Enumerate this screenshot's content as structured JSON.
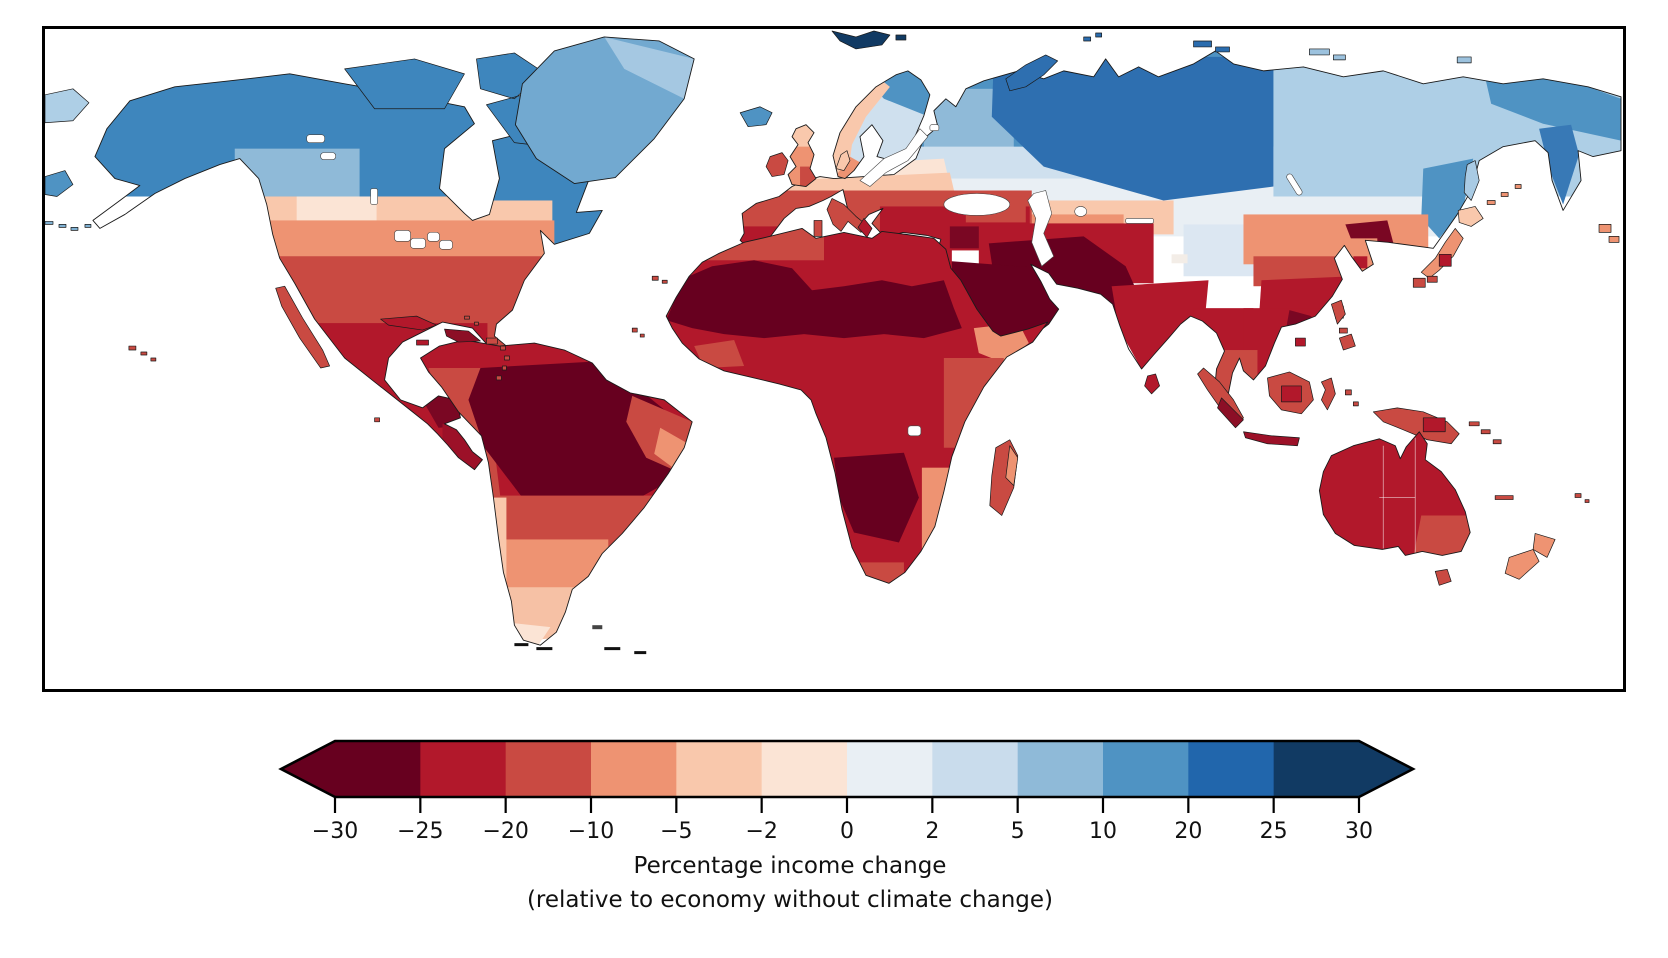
{
  "figure": {
    "caption_line1": "Percentage income change",
    "caption_line2": "(relative to economy without climate change)"
  },
  "colorbar": {
    "tick_labels": [
      "−30",
      "−25",
      "−20",
      "−10",
      "−5",
      "−2",
      "0",
      "2",
      "5",
      "10",
      "20",
      "25",
      "30"
    ],
    "boundaries": [
      -30,
      -25,
      -20,
      -10,
      -5,
      -2,
      0,
      2,
      5,
      10,
      20,
      25,
      30
    ],
    "segment_colors": [
      "#67001f",
      "#b2182b",
      "#c94a42",
      "#ee9372",
      "#f9c8ac",
      "#fbe4d5",
      "#e9eff4",
      "#c9dcec",
      "#8fbad8",
      "#4f93c3",
      "#2166ac",
      "#113a63"
    ],
    "under_arrow_color": "#67001f",
    "over_arrow_color": "#113a63",
    "outline_color": "#000000",
    "extend": "both"
  },
  "map": {
    "ocean_color": "#ffffff",
    "frame_color": "#000000",
    "region_colors": {
      "water": "#ffffff",
      "canada": "#3e86bd",
      "bc_patch": "#8fbad8",
      "ontario_patch": "#c9dcec",
      "arctic_islands": "#3e86bd",
      "greenland_main": "#72a9d0",
      "greenland_ne": "#a5c8e2",
      "us_pale": "#f9c8ac",
      "us_plains_pale": "#fbe4d5",
      "us_ne_peach": "#f9c8ac",
      "us_salmon": "#ee9372",
      "us_brick": "#c94a42",
      "mexico": "#b2182b",
      "yucatan_dark": "#7a0723",
      "centam_dark": "#9c1128",
      "baja": "#c94a42",
      "cuba": "#b2182b",
      "hispaniola": "#8c0f26",
      "jamaica": "#b2182b",
      "puerto_rico": "#c94a42",
      "antilles": "#c94a42",
      "bahamas": "#c94a42",
      "hawaii": "#c94a42",
      "galapagos": "#c94a42",
      "canary": "#c94a42",
      "cape_verde": "#c94a42",
      "sa_base": "#b2182b",
      "andes_coast": "#c94a42",
      "amazon": "#67001f",
      "ne_brazil": "#c94a42",
      "ne_brazil_salmon": "#ee9372",
      "south_band": "#c94a42",
      "argentina": "#ee9372",
      "chile_strip": "#f9c8ac",
      "patagonia": "#f6c1a5",
      "patagonia_tip": "#fbe4d5",
      "tierra_specks": "#111111",
      "falkland": "#444444",
      "iceland": "#4f93c3",
      "ireland": "#c94a42",
      "uk_main": "#ee9372",
      "uk_scotland": "#f9c8ac",
      "uk_brick": "#c94a42",
      "denmark": "#f9c8ac",
      "scandinavia_base": "#cfe0ee",
      "scandinavia_north": "#4f93c3",
      "norway_coast": "#f9c8ac",
      "scandinavia_south": "#ee9372",
      "svalbard": "#113a63",
      "novaya_zemlya": "#2e6fb0",
      "arctic_specks": "#2a6cae",
      "new_siberian": "#9cc2de",
      "wrangel": "#9cc2de",
      "arctic_band": "#4f93c3",
      "nw_russia": "#8fbad8",
      "russia_pale": "#cfe0ee",
      "russia_vpale": "#e9eff4",
      "siberia_dark": "#2e6fb0",
      "esiberia_light": "#aecfe6",
      "chukotka_med": "#4f93c3",
      "kamchatka": "#3879b6",
      "fareast_med": "#4f93c3",
      "sakhalin": "#a9cbe4",
      "steppe_peach": "#f9c8ac",
      "steppe_salmon": "#ee9372",
      "europe_pale_band": "#fbe4d5",
      "europe_peach_band": "#f9c8ac",
      "europe_brick": "#c94a42",
      "iberia_south": "#b2182b",
      "se_europe": "#b2182b",
      "turkey_maroon": "#7a0723",
      "caucasus": "#c94a42",
      "levant": "#b2182b",
      "central_asia": "#b2182b",
      "iran_pak": "#67001f",
      "arabia": "#67001f",
      "india": "#b2182b",
      "burma": "#b2182b",
      "tibet": "#dce7f2",
      "karakoram": "#f3ede7",
      "china_salmon": "#ee9372",
      "china_brick": "#c94a42",
      "china_crimson": "#b2182b",
      "ne_china": "#7a0723",
      "korea": "#ee9372",
      "korea_dot": "#b2182b",
      "japan_hokkaido": "#f9c8ac",
      "japan_honshu": "#ee9372",
      "japan_patch": "#b2182b",
      "japan_south": "#c94a42",
      "kurils": "#ee9372",
      "taiwan": "#c94a42",
      "hainan": "#b2182b",
      "indochina": "#b2182b",
      "vietnam_laos": "#7a0723",
      "malay": "#c94a42",
      "sri_lanka": "#b2182b",
      "sumatra": "#c94a42",
      "sumatra_dark": "#8c0f26",
      "java": "#9c1128",
      "borneo": "#c94a42",
      "borneo_dark": "#b2182b",
      "sulawesi": "#c94a42",
      "philippines": "#c94a42",
      "moluccas": "#c94a42",
      "new_guinea": "#c94a42",
      "ng_patch": "#b2182b",
      "melanesia": "#c94a42",
      "africa_base": "#b2182b",
      "maghreb_coast": "#c94a42",
      "sahara": "#67001f",
      "west_africa_brick": "#c94a42",
      "ethiopia": "#ee9372",
      "east_africa": "#c94a42",
      "sw_africa_dark": "#67001f",
      "mozambique": "#ee9372",
      "cape_brick": "#c94a42",
      "madagascar": "#c94a42",
      "madagascar_e": "#ee9372",
      "australia": "#b2182b",
      "nsw": "#c94a42",
      "tasmania": "#c94a42",
      "nz": "#ee9372",
      "new_caledonia": "#c94a42",
      "fiji": "#c94a42",
      "bering_frag_light": "#aecfe6",
      "bering_frag_med": "#4f93c3",
      "aleutians": "#7fb0d2",
      "right_edge_specks": "#ee9372",
      "antarctic_specks": "#111111"
    }
  },
  "chart_data": {
    "type": "heatmap",
    "subtype": "world-choropleth",
    "title": "",
    "colorbar_label": "Percentage income change (relative to economy without climate change)",
    "colorbar_ticks": [
      -30,
      -25,
      -20,
      -10,
      -5,
      -2,
      0,
      2,
      5,
      10,
      20,
      25,
      30
    ],
    "colorbar_extend": "both",
    "palette": "RdBu diverging (red = income loss, blue = income gain)",
    "legend_position": "bottom",
    "grid": false,
    "regions": [
      {
        "region": "Arctic Canada",
        "value": 18
      },
      {
        "region": "Canada (main)",
        "value": 15
      },
      {
        "region": "Alaska",
        "value": 13
      },
      {
        "region": "British Columbia / Alberta",
        "value": 7
      },
      {
        "region": "Southern Ontario",
        "value": 3
      },
      {
        "region": "Greenland",
        "value": 8
      },
      {
        "region": "Northern US (Pacific NW, N Plains, New England)",
        "value": -3
      },
      {
        "region": "Central US",
        "value": -8
      },
      {
        "region": "Southern US",
        "value": -15
      },
      {
        "region": "Mexico",
        "value": -22
      },
      {
        "region": "Central America",
        "value": -26
      },
      {
        "region": "Caribbean",
        "value": -24
      },
      {
        "region": "Amazon basin",
        "value": -32
      },
      {
        "region": "Andean South America",
        "value": -15
      },
      {
        "region": "NE Brazil",
        "value": -18
      },
      {
        "region": "SE Brazil",
        "value": -22
      },
      {
        "region": "Argentina (pampas)",
        "value": -10
      },
      {
        "region": "Chile",
        "value": -5
      },
      {
        "region": "Patagonia",
        "value": -2
      },
      {
        "region": "Iceland",
        "value": 12
      },
      {
        "region": "UK & Ireland",
        "value": -7
      },
      {
        "region": "Southern Scandinavia",
        "value": -6
      },
      {
        "region": "Northern Scandinavia / Finland",
        "value": 5
      },
      {
        "region": "Central Europe",
        "value": -8
      },
      {
        "region": "Southern Europe",
        "value": -18
      },
      {
        "region": "NW Russia",
        "value": 8
      },
      {
        "region": "Central Siberia",
        "value": 22
      },
      {
        "region": "Eastern Siberia",
        "value": 5
      },
      {
        "region": "Southern Russia / Kazakh steppe",
        "value": -6
      },
      {
        "region": "Turkey",
        "value": -20
      },
      {
        "region": "Middle East / Arabia",
        "value": -32
      },
      {
        "region": "North Africa / Sahara",
        "value": -32
      },
      {
        "region": "Sahel & West Africa",
        "value": -22
      },
      {
        "region": "Central Africa",
        "value": -20
      },
      {
        "region": "East Africa / Ethiopia",
        "value": -11
      },
      {
        "region": "Southern Africa (Angola–Botswana)",
        "value": -28
      },
      {
        "region": "South Africa",
        "value": -20
      },
      {
        "region": "Madagascar",
        "value": -15
      },
      {
        "region": "Iran / Pakistan",
        "value": -29
      },
      {
        "region": "India",
        "value": -22
      },
      {
        "region": "Tibetan Plateau",
        "value": 1
      },
      {
        "region": "Southern / Eastern China",
        "value": -20
      },
      {
        "region": "NE China",
        "value": -28
      },
      {
        "region": "Mongolia",
        "value": -2
      },
      {
        "region": "Korea",
        "value": -14
      },
      {
        "region": "Japan",
        "value": -10
      },
      {
        "region": "Indochina (Vietnam/Laos)",
        "value": -27
      },
      {
        "region": "Indonesia / Malaysia",
        "value": -18
      },
      {
        "region": "Philippines",
        "value": -15
      },
      {
        "region": "New Guinea",
        "value": -15
      },
      {
        "region": "Australia",
        "value": -22
      },
      {
        "region": "SE Australia (NSW/VIC)",
        "value": -12
      },
      {
        "region": "New Zealand",
        "value": -8
      }
    ]
  }
}
